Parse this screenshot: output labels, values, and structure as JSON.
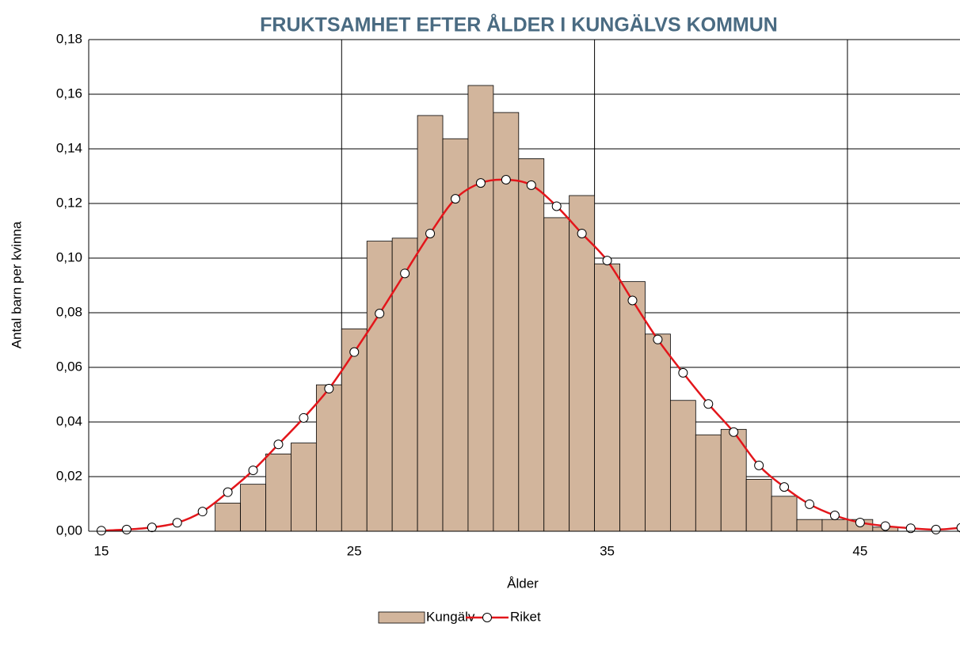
{
  "chart_data": {
    "type": "bar-line",
    "title": "FRUKTSAMHET EFTER ÅLDER I KUNGÄLVS KOMMUN",
    "x_label": "Ålder",
    "y_label": "Antal barn per kvinna",
    "categories": [
      "15",
      null,
      null,
      null,
      null,
      null,
      null,
      null,
      null,
      null,
      "25",
      null,
      null,
      null,
      null,
      null,
      null,
      null,
      null,
      null,
      "35",
      null,
      null,
      null,
      null,
      null,
      null,
      null,
      null,
      null,
      "45",
      null,
      null,
      null,
      null
    ],
    "series": [
      {
        "name": "Kungälv",
        "kind": "bar",
        "color": "#d2b59c",
        "values": [
          0,
          0,
          0,
          0,
          0,
          0.0103,
          0.0172,
          0.0283,
          0.0323,
          0.0536,
          0.0741,
          0.1062,
          0.1073,
          0.1522,
          0.1437,
          0.1632,
          0.1533,
          0.1364,
          0.1148,
          0.1229,
          0.0979,
          0.0914,
          0.0722,
          0.0479,
          0.0353,
          0.0373,
          0.019,
          0.0128,
          0.0043,
          0.0043,
          0.0043,
          0.0015,
          0,
          0,
          0
        ]
      },
      {
        "name": "Riket",
        "kind": "line",
        "color": "#e3161b",
        "values": [
          0.0002,
          0.0006,
          0.0014,
          0.0031,
          0.0072,
          0.0143,
          0.0223,
          0.0318,
          0.0415,
          0.0522,
          0.0656,
          0.0797,
          0.0944,
          0.109,
          0.1217,
          0.1275,
          0.1287,
          0.1267,
          0.119,
          0.109,
          0.0991,
          0.0845,
          0.0702,
          0.058,
          0.0466,
          0.0363,
          0.0241,
          0.0162,
          0.0099,
          0.0058,
          0.0032,
          0.0019,
          0.0011,
          0.0006,
          0.0013
        ]
      }
    ],
    "ylim": [
      0,
      0.18
    ],
    "yticks": [
      {
        "value": 0,
        "label": "0,00"
      },
      {
        "value": 0.02,
        "label": "0,02"
      },
      {
        "value": 0.04,
        "label": "0,04"
      },
      {
        "value": 0.06,
        "label": "0,06"
      },
      {
        "value": 0.08,
        "label": "0,08"
      },
      {
        "value": 0.1,
        "label": "0,10"
      },
      {
        "value": 0.12,
        "label": "0,12"
      },
      {
        "value": 0.14,
        "label": "0,14"
      },
      {
        "value": 0.16,
        "label": "0,16"
      },
      {
        "value": 0.18,
        "label": "0,18"
      }
    ],
    "grid": true,
    "legend": "bottom"
  }
}
